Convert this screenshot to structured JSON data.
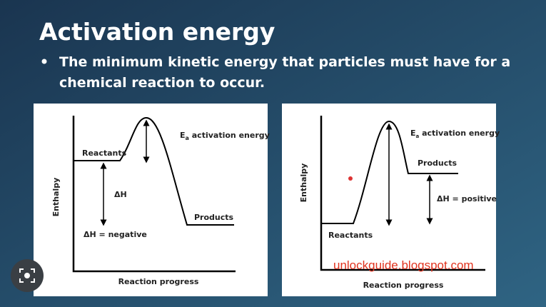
{
  "header": {
    "title": "Activation energy",
    "bullet": [
      "The minimum kinetic energy that particles must have for a",
      "chemical reaction to occur."
    ]
  },
  "diagrams": [
    {
      "activation_label": {
        "symbol": "E",
        "subscript": "a",
        "text": " activation energy"
      },
      "reactants": "Reactants",
      "products": "Products",
      "delta_h": "ΔH",
      "delta_h_sign": "ΔH = negative",
      "y_axis": "Enthalpy",
      "x_axis": "Reaction progress"
    },
    {
      "activation_label": {
        "symbol": "E",
        "subscript": "a",
        "text": " activation energy"
      },
      "reactants": "Reactants",
      "products": "Products",
      "delta_h_sign": "ΔH = positive",
      "y_axis": "Enthalpy",
      "x_axis": "Reaction progress"
    }
  ],
  "watermark": "unlockguide.blogspot.com"
}
